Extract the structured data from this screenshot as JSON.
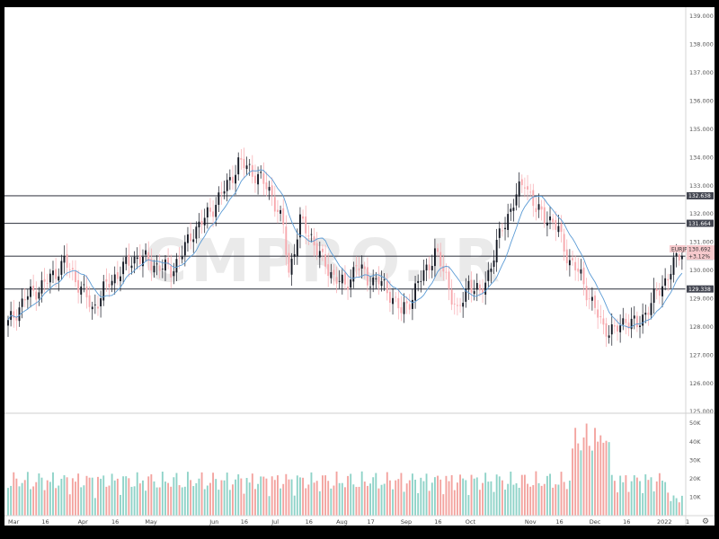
{
  "chart_data": {
    "type": "candlestick",
    "symbol": "EURJPY",
    "last_price": "130.692",
    "change_percent": "+3.12%",
    "watermark": "CMPRO.IR",
    "ylim": [
      125,
      139
    ],
    "y_ticks": [
      "139.000",
      "138.000",
      "137.000",
      "136.000",
      "135.000",
      "134.000",
      "133.000",
      "132.000",
      "131.000",
      "130.000",
      "129.000",
      "128.000",
      "127.000",
      "126.000",
      "125.000"
    ],
    "x_ticks": [
      "Mar",
      "16",
      "Apr",
      "16",
      "May",
      "Jun",
      "16",
      "Jul",
      "16",
      "Aug",
      "17",
      "Sep",
      "16",
      "Oct",
      "Nov",
      "16",
      "Dec",
      "16",
      "2022",
      "1"
    ],
    "levels": [
      {
        "label": "132.638",
        "value": 132.638
      },
      {
        "label": "131.664",
        "value": 131.664
      },
      {
        "label": "130.499",
        "value": 130.499
      },
      {
        "label": "129.338",
        "value": 129.338
      }
    ],
    "ma_label": "130.499",
    "volume_axis": [
      "50K",
      "40K",
      "30K",
      "20K",
      "10K"
    ],
    "volume_ylim": [
      0,
      50000
    ],
    "up_color": "#131722",
    "down_color": "#f7a8ad",
    "ma_color": "#5b9bd5",
    "vol_up_color": "#8fd3c8",
    "vol_down_color": "#f3a39f",
    "level_color": "#434651",
    "close_path": [
      [
        0,
        128.1
      ],
      [
        6,
        129.0
      ],
      [
        14,
        129.6
      ],
      [
        20,
        130.3
      ],
      [
        26,
        129.4
      ],
      [
        30,
        128.6
      ],
      [
        34,
        129.3
      ],
      [
        40,
        130.0
      ],
      [
        46,
        130.5
      ],
      [
        52,
        130.2
      ],
      [
        58,
        130.0
      ],
      [
        62,
        130.6
      ],
      [
        66,
        131.4
      ],
      [
        70,
        131.8
      ],
      [
        74,
        132.4
      ],
      [
        78,
        133.0
      ],
      [
        82,
        133.8
      ],
      [
        86,
        133.6
      ],
      [
        90,
        133.2
      ],
      [
        94,
        132.7
      ],
      [
        98,
        131.5
      ],
      [
        100,
        129.9
      ],
      [
        104,
        131.7
      ],
      [
        108,
        131.2
      ],
      [
        112,
        130.3
      ],
      [
        116,
        129.8
      ],
      [
        120,
        129.4
      ],
      [
        124,
        130.2
      ],
      [
        128,
        129.7
      ],
      [
        132,
        129.6
      ],
      [
        136,
        129.2
      ],
      [
        140,
        128.5
      ],
      [
        144,
        129.1
      ],
      [
        148,
        129.9
      ],
      [
        152,
        130.6
      ],
      [
        156,
        129.8
      ],
      [
        160,
        128.4
      ],
      [
        164,
        129.6
      ],
      [
        168,
        129.1
      ],
      [
        172,
        130.2
      ],
      [
        176,
        131.5
      ],
      [
        180,
        132.4
      ],
      [
        184,
        133.2
      ],
      [
        188,
        132.1
      ],
      [
        192,
        131.9
      ],
      [
        196,
        131.4
      ],
      [
        200,
        130.3
      ],
      [
        204,
        129.8
      ],
      [
        208,
        128.8
      ],
      [
        212,
        128.0
      ],
      [
        216,
        127.8
      ],
      [
        220,
        128.3
      ],
      [
        224,
        128.0
      ],
      [
        228,
        128.7
      ],
      [
        232,
        129.3
      ],
      [
        236,
        130.0
      ],
      [
        240,
        130.7
      ]
    ],
    "candle_count": 241,
    "note_only_visible": ""
  }
}
